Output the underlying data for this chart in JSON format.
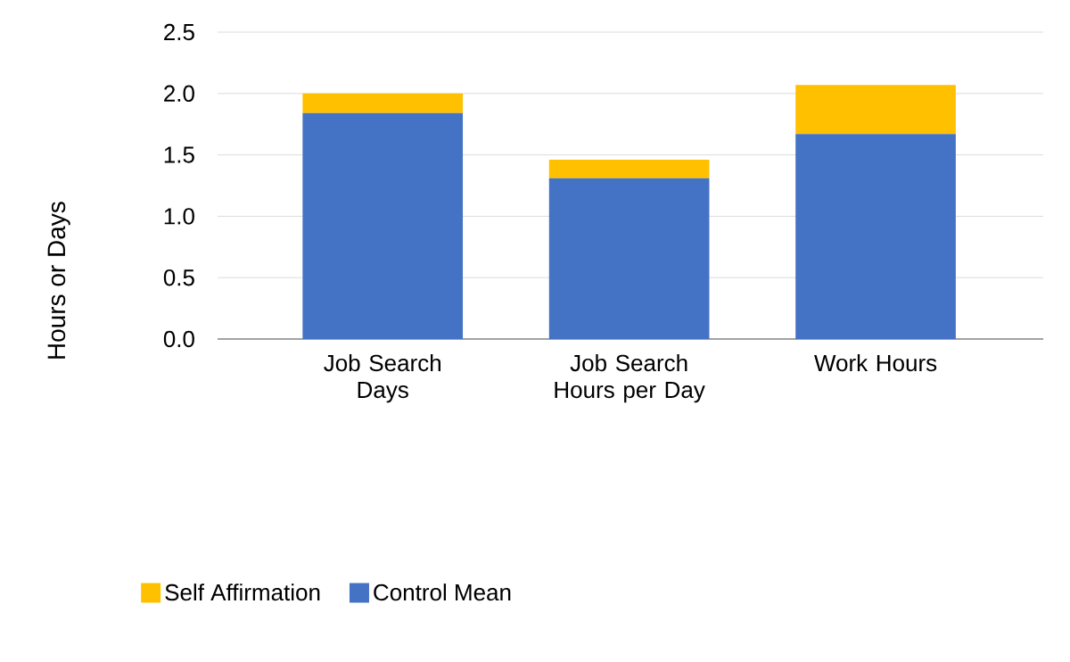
{
  "chart_data": {
    "type": "bar",
    "stacked": true,
    "ylabel": "Hours or Days",
    "categories": [
      "Job Search Days",
      "Job Search Hours per Day",
      "Work Hours"
    ],
    "series": [
      {
        "name": "Control Mean",
        "color": "#4472c4",
        "values": [
          1.84,
          1.31,
          1.67
        ]
      },
      {
        "name": "Self Affirmation",
        "color": "#ffc000",
        "values": [
          0.16,
          0.15,
          0.4
        ]
      }
    ],
    "ylim": [
      0,
      2.5
    ],
    "yticks": [
      {
        "value": 0,
        "label": "0.0"
      },
      0.5,
      {
        "value": 1,
        "label": "1.0"
      },
      1.5,
      {
        "value": 2,
        "label": "2.0"
      },
      2.5
    ],
    "grid": "y",
    "legend": "bottom"
  }
}
